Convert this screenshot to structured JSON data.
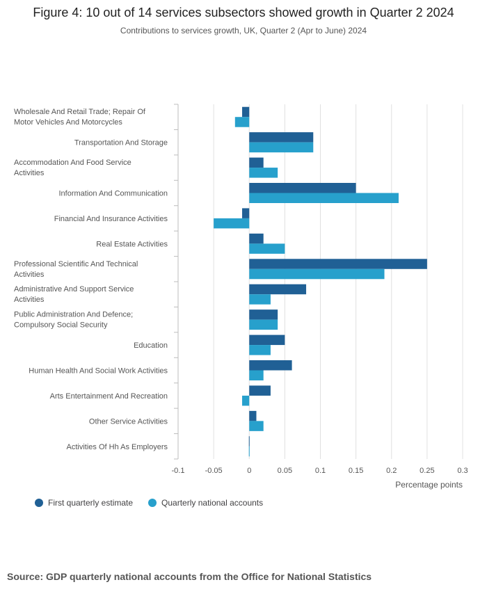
{
  "title": "Figure 4: 10 out of 14 services subsectors showed growth in Quarter 2 2024",
  "subtitle": "Contributions to services growth, UK, Quarter 2 (Apr to June) 2024",
  "source": "Source: GDP quarterly national accounts from the Office for National Statistics",
  "colors": {
    "first_estimate": "#206095",
    "national_accounts": "#27a0cc",
    "grid": "#e0e0e0",
    "axis": "#bcbcbc"
  },
  "legend": {
    "first_estimate": "First quarterly estimate",
    "national_accounts": "Quarterly national accounts"
  },
  "chart_data": {
    "type": "bar",
    "orientation": "horizontal",
    "title": "Figure 4: 10 out of 14 services subsectors showed growth in Quarter 2 2024",
    "subtitle": "Contributions to services growth, UK, Quarter 2 (Apr to June) 2024",
    "xlabel": "Percentage points",
    "xlim": [
      -0.1,
      0.3
    ],
    "xticks": [
      "-0.1",
      "-0.05",
      "0",
      "0.05",
      "0.1",
      "0.15",
      "0.2",
      "0.25",
      "0.3"
    ],
    "xtick_values": [
      -0.1,
      -0.05,
      0,
      0.05,
      0.1,
      0.15,
      0.2,
      0.25,
      0.3
    ],
    "grid": true,
    "legend_position": "bottom-left",
    "categories": [
      [
        "Wholesale And Retail Trade; Repair Of",
        "Motor Vehicles And Motorcycles"
      ],
      [
        "Transportation And Storage"
      ],
      [
        "Accommodation And Food Service",
        "Activities"
      ],
      [
        "Information And Communication"
      ],
      [
        "Financial And Insurance Activities"
      ],
      [
        "Real Estate Activities"
      ],
      [
        "Professional Scientific And Technical",
        "Activities"
      ],
      [
        "Administrative And Support Service",
        "Activities"
      ],
      [
        "Public Administration And Defence;",
        "Compulsory Social Security"
      ],
      [
        "Education"
      ],
      [
        "Human Health And Social Work Activities"
      ],
      [
        "Arts Entertainment And Recreation"
      ],
      [
        "Other Service Activities"
      ],
      [
        "Activities Of Hh As Employers"
      ]
    ],
    "series": [
      {
        "name": "First quarterly estimate",
        "values": [
          -0.01,
          0.09,
          0.02,
          0.15,
          -0.01,
          0.02,
          0.25,
          0.08,
          0.04,
          0.05,
          0.06,
          0.03,
          0.01,
          0.0
        ]
      },
      {
        "name": "Quarterly national accounts",
        "values": [
          -0.02,
          0.09,
          0.04,
          0.21,
          -0.05,
          0.05,
          0.19,
          0.03,
          0.04,
          0.03,
          0.02,
          -0.01,
          0.02,
          0.0
        ]
      }
    ]
  }
}
